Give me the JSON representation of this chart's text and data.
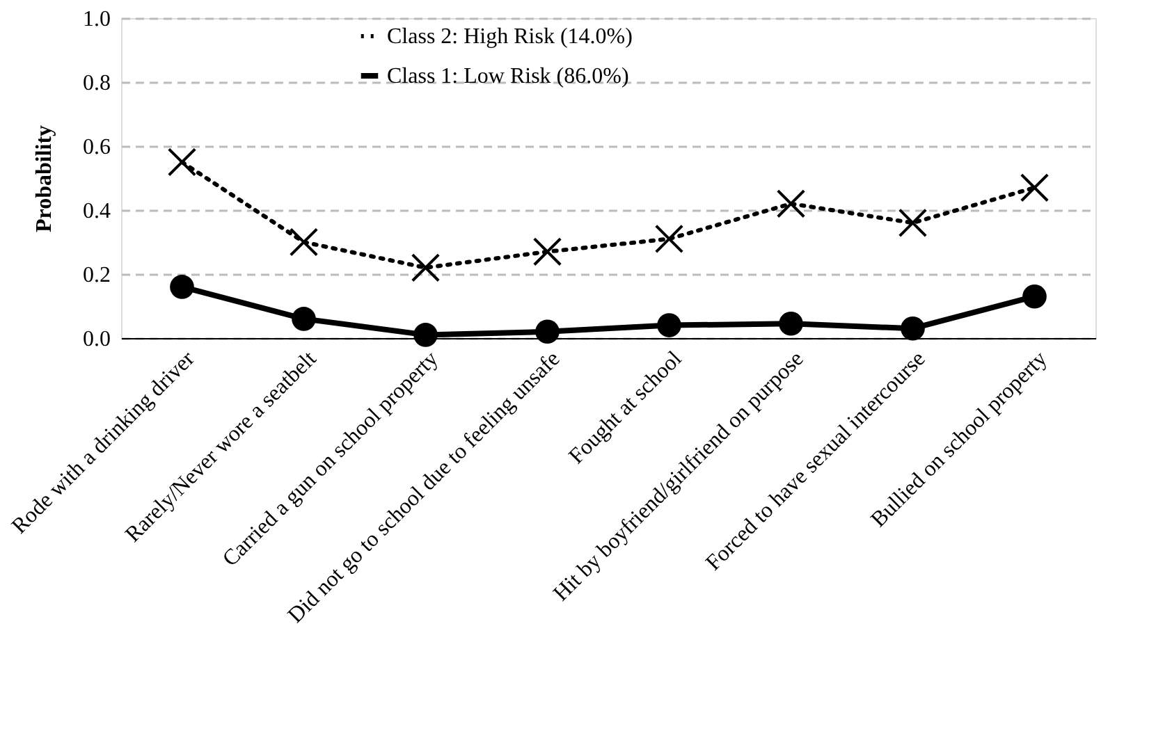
{
  "chart_data": {
    "type": "line",
    "ylabel": "Probability",
    "categories": [
      "Rode with a drinking driver",
      "Rarely/Never wore a seatbelt",
      "Carried a gun on school property",
      "Did not go to school due to feeling unsafe",
      "Fought at school",
      "Hit by boyfriend/girlfriend on purpose",
      "Forced to have sexual intercourse",
      "Bullied on school property"
    ],
    "series": [
      {
        "name": "Class 2: High Risk (14.0%)",
        "color": "#000000",
        "marker": "cross",
        "line_style": "dotted",
        "values": [
          0.55,
          0.3,
          0.22,
          0.27,
          0.31,
          0.42,
          0.36,
          0.47
        ]
      },
      {
        "name": "Class 1: Low Risk (86.0%)",
        "color": "#000000",
        "marker": "circle",
        "line_style": "solid",
        "values": [
          0.16,
          0.06,
          0.01,
          0.02,
          0.04,
          0.045,
          0.03,
          0.13
        ]
      }
    ],
    "ylim": [
      0,
      1
    ],
    "yticks": [
      {
        "value": 0,
        "label": "0.0"
      },
      0.2,
      0.4,
      0.6,
      0.8,
      {
        "value": 1,
        "label": "1.0"
      }
    ],
    "grid": "y",
    "legend": "top"
  }
}
